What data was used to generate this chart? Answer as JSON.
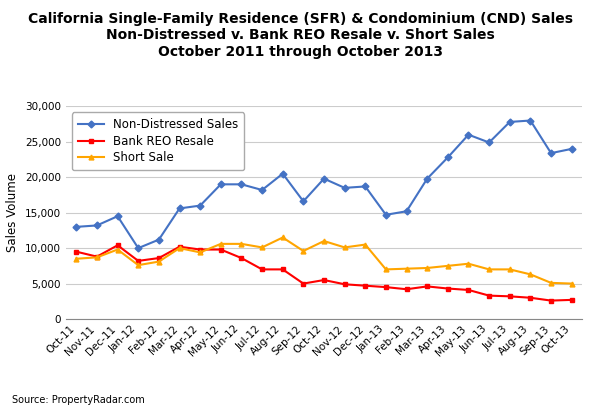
{
  "title": "California Single-Family Residence (SFR) & Condominium (CND) Sales\nNon-Distressed v. Bank REO Resale v. Short Sales\nOctober 2011 through October 2013",
  "ylabel": "Sales Volume",
  "source": "Source: PropertyRadar.com",
  "xlabels": [
    "Oct-11",
    "Nov-11",
    "Dec-11",
    "Jan-12",
    "Feb-12",
    "Mar-12",
    "Apr-12",
    "May-12",
    "Jun-12",
    "Jul-12",
    "Aug-12",
    "Sep-12",
    "Oct-12",
    "Nov-12",
    "Dec-12",
    "Jan-13",
    "Feb-13",
    "Mar-13",
    "Apr-13",
    "May-13",
    "Jun-13",
    "Jul-13",
    "Aug-13",
    "Sep-13",
    "Oct-13"
  ],
  "non_distressed": [
    13000,
    13200,
    14500,
    10000,
    11200,
    15600,
    16000,
    19000,
    19000,
    18200,
    20500,
    16600,
    19800,
    18500,
    18700,
    14700,
    15200,
    19800,
    22800,
    26000,
    24900,
    27800,
    28000,
    23400,
    24000
  ],
  "bank_reo": [
    9500,
    8800,
    10400,
    8200,
    8600,
    10200,
    9800,
    9800,
    8600,
    7000,
    7000,
    5000,
    5500,
    4900,
    4700,
    4500,
    4200,
    4600,
    4300,
    4100,
    3300,
    3200,
    3000,
    2600,
    2700
  ],
  "short_sale": [
    8500,
    8700,
    9800,
    7600,
    8100,
    10000,
    9400,
    10600,
    10600,
    10100,
    11500,
    9600,
    11000,
    10100,
    10500,
    7000,
    7100,
    7200,
    7500,
    7800,
    7000,
    7000,
    6300,
    5100,
    5000
  ],
  "non_distressed_color": "#4472C4",
  "bank_reo_color": "#FF0000",
  "short_sale_color": "#FFA500",
  "ylim": [
    0,
    30000
  ],
  "background_color": "#FFFFFF",
  "grid_color": "#CCCCCC",
  "title_fontsize": 10,
  "label_fontsize": 8.5,
  "tick_fontsize": 7.5
}
